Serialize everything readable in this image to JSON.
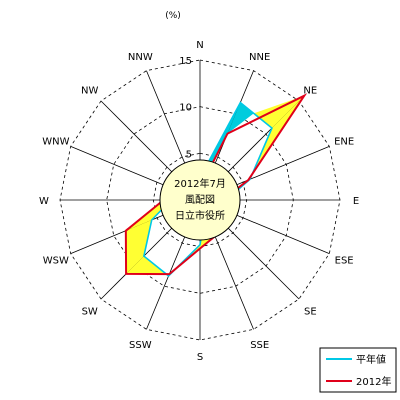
{
  "chart_data": {
    "type": "radar",
    "title": "2012年7月",
    "subtitle_lines": [
      "風配図",
      "日立市役所"
    ],
    "unit_label": "(%)",
    "directions": [
      "N",
      "NNE",
      "NE",
      "ENE",
      "E",
      "ESE",
      "SE",
      "SSE",
      "S",
      "SSW",
      "SW",
      "WSW",
      "W",
      "WNW",
      "NW",
      "NNW"
    ],
    "rlim": [
      0,
      15
    ],
    "r_ticks": [
      0,
      5,
      10,
      15
    ],
    "grid": true,
    "legend_position": "bottom-right",
    "series": [
      {
        "name": "平年値",
        "color": "#00c8e6",
        "values": [
          2.4,
          11.3,
          10.9,
          5.8,
          2.8,
          2.3,
          4.0,
          1.5,
          4.8,
          8.8,
          8.5,
          5.6,
          3.1,
          3.5,
          2.8,
          1.2
        ]
      },
      {
        "name": "2012年",
        "color": "#e0001a",
        "values": [
          1.3,
          7.7,
          15.8,
          5.6,
          2.4,
          3.1,
          2.4,
          4.2,
          5.2,
          8.6,
          11.2,
          8.6,
          3.9,
          3.5,
          2.2,
          1.3
        ]
      }
    ],
    "fill_colors": {
      "excess": "#ffff33",
      "deficit": "#00ccdd"
    }
  }
}
